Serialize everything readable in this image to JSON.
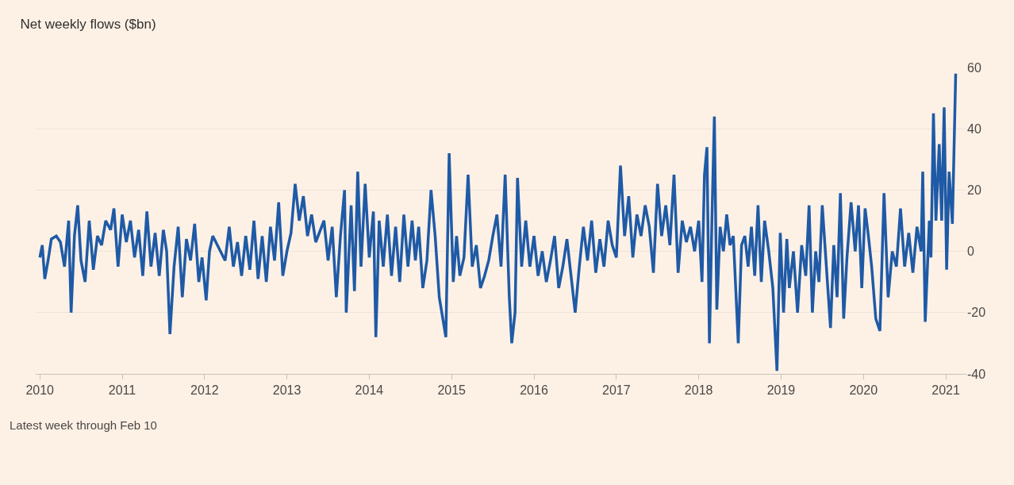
{
  "chart_data": {
    "type": "line",
    "title": "Net weekly flows ($bn)",
    "annotations": [
      "Latest week through Feb 10"
    ],
    "x": [
      2010.0,
      2010.03,
      2010.06,
      2010.1,
      2010.14,
      2010.2,
      2010.25,
      2010.3,
      2010.35,
      2010.38,
      2010.42,
      2010.46,
      2010.5,
      2010.55,
      2010.6,
      2010.65,
      2010.7,
      2010.75,
      2010.8,
      2010.86,
      2010.9,
      2010.95,
      2011.0,
      2011.05,
      2011.1,
      2011.15,
      2011.2,
      2011.25,
      2011.3,
      2011.35,
      2011.4,
      2011.45,
      2011.5,
      2011.54,
      2011.58,
      2011.63,
      2011.68,
      2011.73,
      2011.78,
      2011.83,
      2011.88,
      2011.93,
      2011.97,
      2012.02,
      2012.06,
      2012.1,
      2012.25,
      2012.3,
      2012.35,
      2012.4,
      2012.45,
      2012.5,
      2012.55,
      2012.6,
      2012.65,
      2012.7,
      2012.75,
      2012.8,
      2012.85,
      2012.9,
      2012.95,
      2013.0,
      2013.05,
      2013.1,
      2013.15,
      2013.2,
      2013.25,
      2013.3,
      2013.35,
      2013.45,
      2013.5,
      2013.55,
      2013.6,
      2013.65,
      2013.7,
      2013.72,
      2013.78,
      2013.82,
      2013.86,
      2013.9,
      2013.95,
      2014.0,
      2014.05,
      2014.08,
      2014.12,
      2014.17,
      2014.22,
      2014.27,
      2014.32,
      2014.37,
      2014.42,
      2014.47,
      2014.52,
      2014.56,
      2014.6,
      2014.65,
      2014.7,
      2014.75,
      2014.8,
      2014.85,
      2014.93,
      2014.97,
      2015.02,
      2015.06,
      2015.1,
      2015.15,
      2015.2,
      2015.25,
      2015.3,
      2015.35,
      2015.4,
      2015.45,
      2015.5,
      2015.55,
      2015.6,
      2015.65,
      2015.7,
      2015.73,
      2015.77,
      2015.8,
      2015.85,
      2015.9,
      2015.95,
      2016.0,
      2016.05,
      2016.1,
      2016.15,
      2016.2,
      2016.25,
      2016.3,
      2016.35,
      2016.4,
      2016.45,
      2016.5,
      2016.55,
      2016.6,
      2016.65,
      2016.7,
      2016.75,
      2016.8,
      2016.85,
      2016.9,
      2016.95,
      2017.0,
      2017.05,
      2017.1,
      2017.15,
      2017.2,
      2017.25,
      2017.3,
      2017.35,
      2017.4,
      2017.45,
      2017.5,
      2017.55,
      2017.6,
      2017.65,
      2017.7,
      2017.75,
      2017.8,
      2017.85,
      2017.9,
      2017.95,
      2018.0,
      2018.04,
      2018.07,
      2018.1,
      2018.13,
      2018.16,
      2018.19,
      2018.22,
      2018.26,
      2018.3,
      2018.34,
      2018.38,
      2018.42,
      2018.48,
      2018.52,
      2018.56,
      2018.6,
      2018.64,
      2018.68,
      2018.72,
      2018.76,
      2018.8,
      2018.85,
      2018.9,
      2018.95,
      2018.99,
      2019.03,
      2019.07,
      2019.1,
      2019.15,
      2019.2,
      2019.25,
      2019.3,
      2019.34,
      2019.38,
      2019.42,
      2019.46,
      2019.5,
      2019.55,
      2019.6,
      2019.64,
      2019.68,
      2019.72,
      2019.76,
      2019.8,
      2019.85,
      2019.9,
      2019.94,
      2019.98,
      2020.02,
      2020.06,
      2020.1,
      2020.15,
      2020.2,
      2020.25,
      2020.3,
      2020.35,
      2020.4,
      2020.45,
      2020.5,
      2020.55,
      2020.6,
      2020.65,
      2020.7,
      2020.72,
      2020.75,
      2020.8,
      2020.82,
      2020.85,
      2020.88,
      2020.92,
      2020.95,
      2020.98,
      2021.01,
      2021.04,
      2021.08,
      2021.12
    ],
    "series": [
      {
        "color": "#1f5aa6",
        "values": [
          -2,
          2,
          -9,
          -3,
          4,
          5,
          3,
          -5,
          10,
          -20,
          5,
          15,
          -3,
          -10,
          10,
          -6,
          5,
          2,
          10,
          7,
          14,
          -5,
          12,
          3,
          10,
          -2,
          7,
          -8,
          13,
          -5,
          6,
          -8,
          7,
          0,
          -27,
          -5,
          8,
          -15,
          4,
          -3,
          9,
          -10,
          -2,
          -16,
          0,
          5,
          -3,
          8,
          -5,
          3,
          -8,
          5,
          -6,
          10,
          -9,
          5,
          -10,
          8,
          -3,
          16,
          -8,
          0,
          6,
          22,
          10,
          18,
          5,
          12,
          3,
          10,
          -3,
          8,
          -15,
          5,
          20,
          -20,
          15,
          -13,
          26,
          -5,
          22,
          -2,
          13,
          -28,
          10,
          -5,
          12,
          -8,
          8,
          -10,
          12,
          -5,
          10,
          -3,
          8,
          -12,
          -3,
          20,
          5,
          -15,
          -28,
          32,
          -10,
          5,
          -8,
          -2,
          25,
          -5,
          2,
          -12,
          -8,
          -3,
          5,
          12,
          -5,
          25,
          -15,
          -30,
          -20,
          24,
          -5,
          10,
          -5,
          5,
          -8,
          0,
          -10,
          -3,
          5,
          -12,
          -5,
          4,
          -8,
          -20,
          -5,
          8,
          -3,
          10,
          -7,
          4,
          -5,
          10,
          2,
          -2,
          28,
          5,
          18,
          -2,
          12,
          5,
          15,
          8,
          -7,
          22,
          5,
          15,
          2,
          25,
          -7,
          10,
          3,
          8,
          0,
          10,
          -10,
          25,
          34,
          -30,
          10,
          44,
          -19,
          8,
          0,
          12,
          2,
          5,
          -30,
          2,
          5,
          -5,
          8,
          -8,
          15,
          -10,
          10,
          0,
          -12,
          -39,
          6,
          -20,
          4,
          -12,
          0,
          -20,
          2,
          -8,
          15,
          -20,
          0,
          -10,
          15,
          -5,
          -25,
          2,
          -15,
          19,
          -22,
          -2,
          16,
          0,
          15,
          -12,
          14,
          5,
          -5,
          -22,
          -26,
          19,
          -15,
          0,
          -5,
          14,
          -5,
          6,
          -7,
          8,
          0,
          26,
          -23,
          10,
          -2,
          45,
          10,
          35,
          10,
          47,
          -6,
          26,
          9,
          58
        ]
      }
    ],
    "xlim": [
      2009.95,
      2021.25
    ],
    "xticks": [
      2010,
      2011,
      2012,
      2013,
      2014,
      2015,
      2016,
      2017,
      2018,
      2019,
      2020,
      2021
    ],
    "ylim": [
      -40,
      60
    ],
    "yticks": [
      -40,
      -20,
      0,
      20,
      40,
      60
    ],
    "grid": "y",
    "legend": false,
    "marker": "none",
    "line_style": "solid"
  }
}
